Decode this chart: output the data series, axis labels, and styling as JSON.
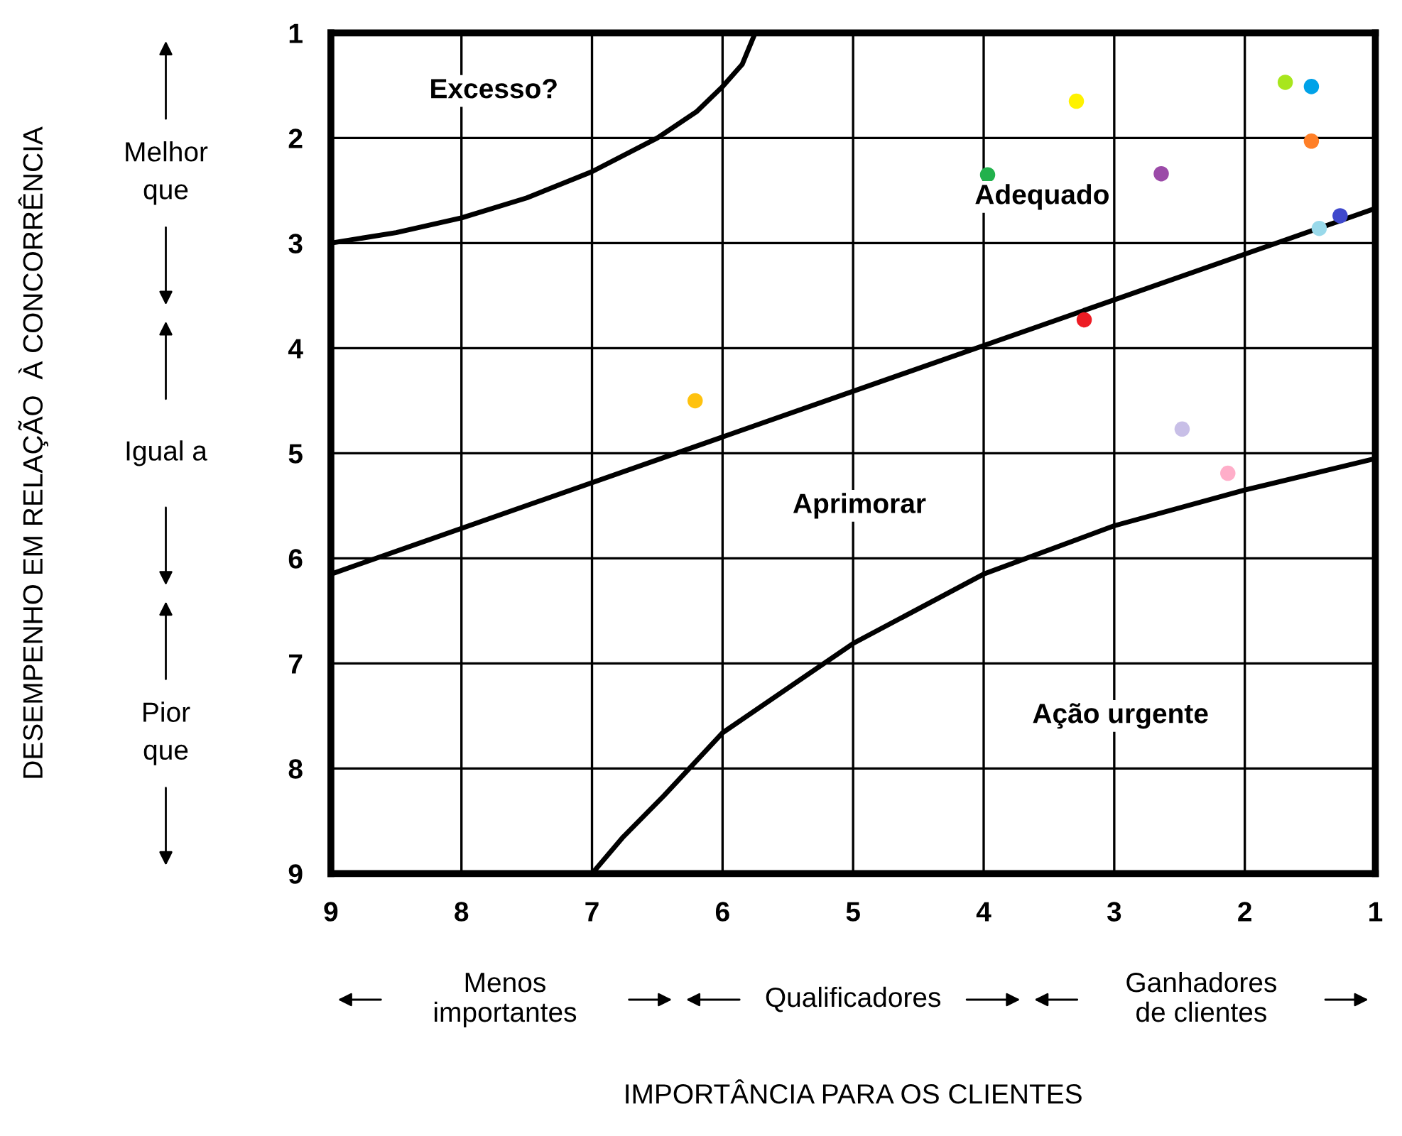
{
  "chart_data": {
    "type": "scatter",
    "xlim": [
      9,
      1
    ],
    "ylim": [
      9,
      1
    ],
    "xticks": [
      9,
      8,
      7,
      6,
      5,
      4,
      3,
      2,
      1
    ],
    "yticks": [
      1,
      2,
      3,
      4,
      5,
      6,
      7,
      8,
      9
    ],
    "grid": true,
    "legend": false,
    "series": [
      {
        "marker": "circle",
        "x": [
          1.69,
          1.49,
          3.29,
          1.49,
          3.97,
          2.64,
          1.27,
          1.43,
          3.23,
          6.21,
          2.48,
          2.13
        ],
        "values": [
          1.47,
          1.51,
          1.65,
          2.03,
          2.35,
          2.34,
          2.74,
          2.86,
          3.73,
          4.5,
          4.77,
          5.19
        ],
        "colors": [
          "#a8e61d",
          "#00a2e8",
          "#fff200",
          "#ff7f27",
          "#22b14c",
          "#9b4aa8",
          "#3f48cc",
          "#99d9ea",
          "#ed1c24",
          "#ffc20e",
          "#c8bfe7",
          "#ffaec9"
        ]
      },
      {
        "type": "line",
        "color": "#000000",
        "x": [
          9,
          8.5,
          8,
          7.5,
          7,
          6.5,
          6.2,
          6,
          5.85,
          5.75
        ],
        "values": [
          3.0,
          2.9,
          2.76,
          2.57,
          2.32,
          2.0,
          1.75,
          1.51,
          1.3,
          1.0
        ]
      },
      {
        "type": "line",
        "color": "#000000",
        "x": [
          9,
          1
        ],
        "values": [
          6.15,
          2.67
        ]
      },
      {
        "type": "line",
        "color": "#000000",
        "x": [
          7,
          6.76,
          6.45,
          6,
          5,
          4,
          3,
          2,
          1
        ],
        "values": [
          9,
          8.65,
          8.26,
          7.66,
          6.81,
          6.15,
          5.69,
          5.35,
          5.05
        ]
      }
    ],
    "annotations": [
      "Excesso?",
      "Adequado",
      "Aprimorar",
      "Ação urgente",
      "Melhor\nque",
      "Igual a",
      "Pior\nque",
      "Menos\nimportantes",
      "Qualificadores",
      "Ganhadores\nde clientes",
      "IMPORTÂNCIA PARA OS CLIENTES",
      "DESEMPENHO EM RELAÇÃO  À CONCORRÊNCIA"
    ]
  }
}
